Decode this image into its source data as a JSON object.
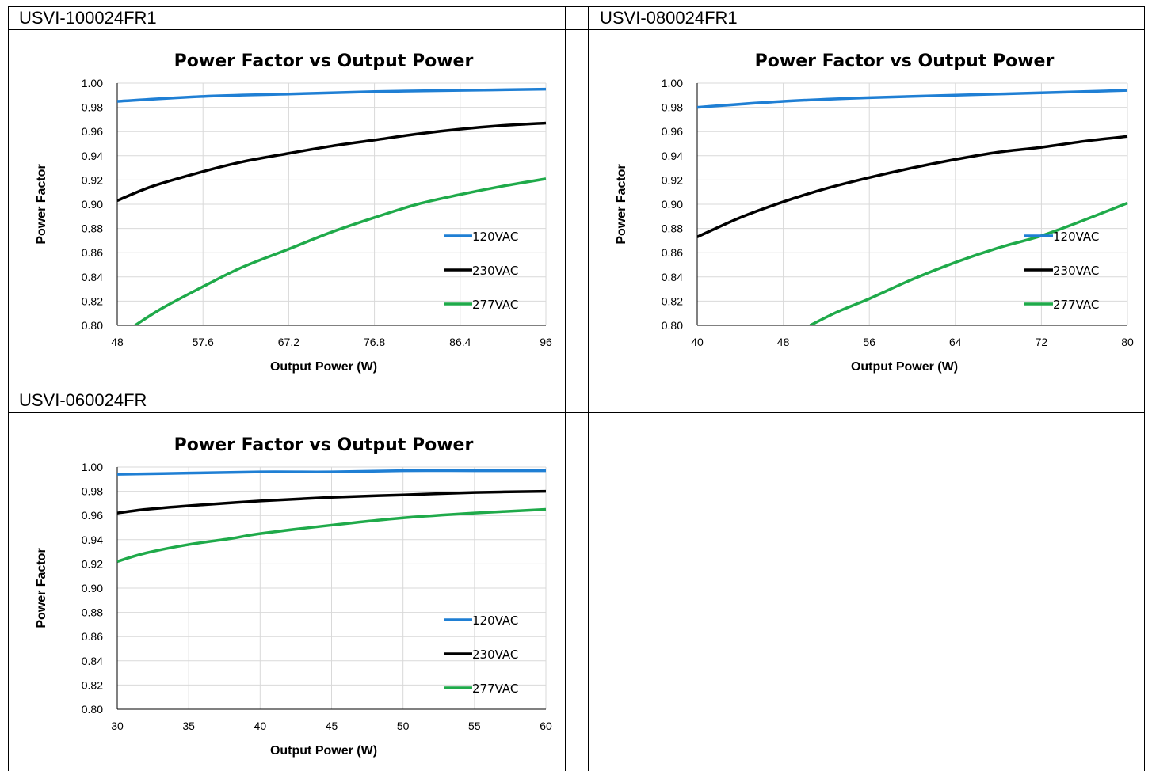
{
  "cells": [
    {
      "label": "USVI-100024FR1"
    },
    {
      "label": "USVI-080024FR1"
    },
    {
      "label": "USVI-060024FR"
    }
  ],
  "chart_data": [
    {
      "type": "line",
      "title": "Power Factor vs Output Power",
      "xlabel": "Output Power (W)",
      "ylabel": "Power Factor",
      "xlim": [
        48,
        96
      ],
      "ylim": [
        0.8,
        1.0
      ],
      "xticks": [
        "48",
        "57.6",
        "67.2",
        "76.8",
        "86.4",
        "96"
      ],
      "yticks": [
        "0.80",
        "0.82",
        "0.84",
        "0.86",
        "0.88",
        "0.90",
        "0.92",
        "0.94",
        "0.96",
        "0.98",
        "1.00"
      ],
      "grid": true,
      "legend": "right",
      "series": [
        {
          "name": "120VAC",
          "color": "#1f7fd4",
          "x": [
            48,
            57.6,
            67.2,
            76.8,
            86.4,
            96
          ],
          "y": [
            0.985,
            0.989,
            0.991,
            0.993,
            0.994,
            0.995
          ]
        },
        {
          "name": "230VAC",
          "color": "#000000",
          "x": [
            48,
            52,
            57.6,
            62,
            67.2,
            72,
            76.8,
            81.6,
            86.4,
            91.2,
            96
          ],
          "y": [
            0.903,
            0.915,
            0.927,
            0.935,
            0.942,
            0.948,
            0.953,
            0.958,
            0.962,
            0.965,
            0.967
          ]
        },
        {
          "name": "277VAC",
          "color": "#1faa4a",
          "x": [
            50,
            53,
            57.6,
            62,
            67.2,
            72,
            76.8,
            81.6,
            86.4,
            91.2,
            96
          ],
          "y": [
            0.8,
            0.814,
            0.832,
            0.848,
            0.863,
            0.877,
            0.889,
            0.9,
            0.908,
            0.915,
            0.921
          ]
        }
      ]
    },
    {
      "type": "line",
      "title": "Power Factor vs Output Power",
      "xlabel": "Output Power (W)",
      "ylabel": "Power Factor",
      "xlim": [
        40,
        80
      ],
      "ylim": [
        0.8,
        1.0
      ],
      "xticks": [
        "40",
        "48",
        "56",
        "64",
        "72",
        "80"
      ],
      "yticks": [
        "0.80",
        "0.82",
        "0.84",
        "0.86",
        "0.88",
        "0.90",
        "0.92",
        "0.94",
        "0.96",
        "0.98",
        "1.00"
      ],
      "grid": true,
      "legend": "right",
      "series": [
        {
          "name": "120VAC",
          "color": "#1f7fd4",
          "x": [
            40,
            48,
            56,
            64,
            72,
            80
          ],
          "y": [
            0.98,
            0.985,
            0.988,
            0.99,
            0.992,
            0.994
          ]
        },
        {
          "name": "230VAC",
          "color": "#000000",
          "x": [
            40,
            44,
            48,
            52,
            56,
            60,
            64,
            68,
            72,
            76,
            80
          ],
          "y": [
            0.873,
            0.889,
            0.902,
            0.913,
            0.922,
            0.93,
            0.937,
            0.943,
            0.947,
            0.952,
            0.956
          ]
        },
        {
          "name": "277VAC",
          "color": "#1faa4a",
          "x": [
            50.5,
            53,
            56,
            60,
            64,
            68,
            72,
            76,
            80
          ],
          "y": [
            0.8,
            0.811,
            0.822,
            0.838,
            0.852,
            0.864,
            0.874,
            0.887,
            0.901
          ]
        }
      ]
    },
    {
      "type": "line",
      "title": "Power Factor vs Output Power",
      "xlabel": "Output Power (W)",
      "ylabel": "Power Factor",
      "xlim": [
        30,
        60
      ],
      "ylim": [
        0.8,
        1.0
      ],
      "xticks": [
        "30",
        "35",
        "40",
        "45",
        "50",
        "55",
        "60"
      ],
      "yticks": [
        "0.80",
        "0.82",
        "0.84",
        "0.86",
        "0.88",
        "0.90",
        "0.92",
        "0.94",
        "0.96",
        "0.98",
        "1.00"
      ],
      "grid": true,
      "legend": "right",
      "series": [
        {
          "name": "120VAC",
          "color": "#1f7fd4",
          "x": [
            30,
            35,
            40,
            45,
            50,
            55,
            60
          ],
          "y": [
            0.994,
            0.995,
            0.996,
            0.996,
            0.997,
            0.997,
            0.997
          ]
        },
        {
          "name": "230VAC",
          "color": "#000000",
          "x": [
            30,
            32,
            35,
            40,
            45,
            50,
            55,
            60
          ],
          "y": [
            0.962,
            0.965,
            0.968,
            0.972,
            0.975,
            0.977,
            0.979,
            0.98
          ]
        },
        {
          "name": "277VAC",
          "color": "#1faa4a",
          "x": [
            30,
            32,
            35,
            38,
            40,
            45,
            50,
            55,
            60
          ],
          "y": [
            0.922,
            0.929,
            0.936,
            0.941,
            0.945,
            0.952,
            0.958,
            0.962,
            0.965
          ]
        }
      ]
    }
  ]
}
